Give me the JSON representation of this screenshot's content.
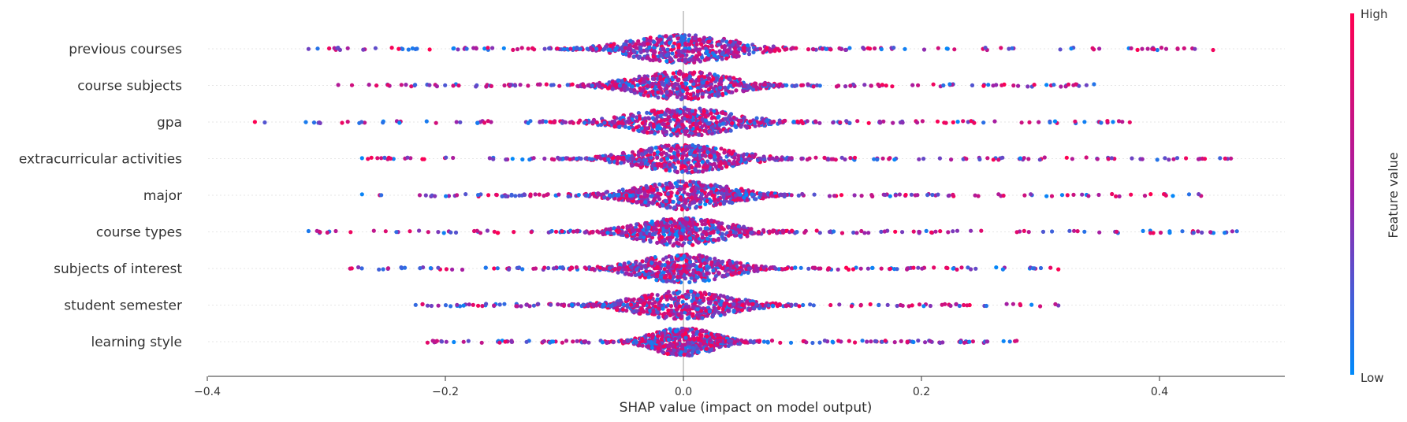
{
  "chart_data": {
    "type": "scatter",
    "title": "",
    "xlabel": "SHAP value (impact on model output)",
    "ylabel": "",
    "xlim": [
      -0.4,
      0.5
    ],
    "xticks": [
      "−0.4",
      "−0.2",
      "0.0",
      "0.2",
      "0.4"
    ],
    "xtick_values": [
      -0.4,
      -0.2,
      0.0,
      0.2,
      0.4
    ],
    "features": [
      {
        "name": "previous courses",
        "min": -0.315,
        "max": 0.445,
        "spread": 0.075
      },
      {
        "name": "course subjects",
        "min": -0.29,
        "max": 0.345,
        "spread": 0.07
      },
      {
        "name": "gpa",
        "min": -0.36,
        "max": 0.375,
        "spread": 0.075
      },
      {
        "name": "extracurricular activities",
        "min": -0.27,
        "max": 0.46,
        "spread": 0.07
      },
      {
        "name": "major",
        "min": -0.27,
        "max": 0.435,
        "spread": 0.07
      },
      {
        "name": "course types",
        "min": -0.315,
        "max": 0.465,
        "spread": 0.065
      },
      {
        "name": "subjects of interest",
        "min": -0.28,
        "max": 0.315,
        "spread": 0.065
      },
      {
        "name": "student semester",
        "min": -0.225,
        "max": 0.315,
        "spread": 0.07
      },
      {
        "name": "learning style",
        "min": -0.215,
        "max": 0.28,
        "spread": 0.045
      }
    ],
    "colorbar": {
      "title": "Feature value",
      "high_label": "High",
      "low_label": "Low",
      "high_color": "#ff0051",
      "mid_color": "#a020a8",
      "low_color": "#008bfb"
    },
    "grid": false,
    "legend": "colorbar-right"
  }
}
